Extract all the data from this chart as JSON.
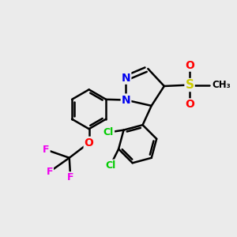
{
  "background_color": "#ebebeb",
  "bond_color": "#000000",
  "bond_width": 1.8,
  "atom_colors": {
    "N": "#0000ee",
    "O": "#ff0000",
    "F": "#ee00ee",
    "Cl": "#00cc00",
    "S": "#cccc00",
    "C": "#000000"
  },
  "figsize": [
    3.0,
    3.0
  ],
  "dpi": 100
}
